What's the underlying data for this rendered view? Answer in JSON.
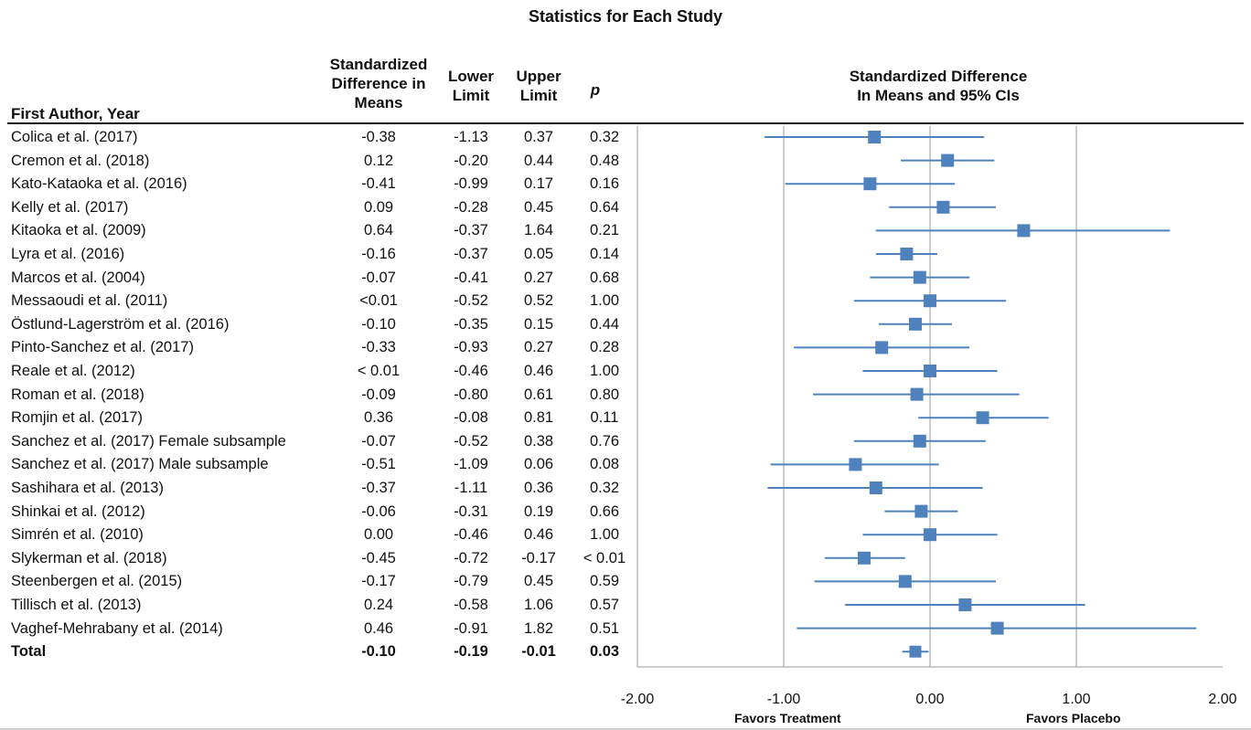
{
  "title": "Statistics for Each Study",
  "headers": {
    "author": "First Author, Year",
    "smd": [
      "Standardized",
      "Difference in",
      "Means"
    ],
    "lower": [
      "Lower",
      "Limit"
    ],
    "upper": [
      "Upper",
      "Limit"
    ],
    "p": "p",
    "plot": [
      "Standardized Difference",
      "In Means and 95% CIs"
    ]
  },
  "footer": {
    "left": "Favors Treatment",
    "right": "Favors Placebo"
  },
  "rows": [
    {
      "author": "Colica et al. (2017)",
      "smd": "-0.38",
      "lower": "-1.13",
      "upper": "0.37",
      "p": "0.32"
    },
    {
      "author": "Cremon et al. (2018)",
      "smd": "0.12",
      "lower": "-0.20",
      "upper": "0.44",
      "p": "0.48"
    },
    {
      "author": "Kato-Kataoka et al. (2016)",
      "smd": "-0.41",
      "lower": "-0.99",
      "upper": "0.17",
      "p": "0.16"
    },
    {
      "author": "Kelly et al. (2017)",
      "smd": "0.09",
      "lower": "-0.28",
      "upper": "0.45",
      "p": "0.64"
    },
    {
      "author": "Kitaoka et al. (2009)",
      "smd": "0.64",
      "lower": "-0.37",
      "upper": "1.64",
      "p": "0.21"
    },
    {
      "author": "Lyra et al. (2016)",
      "smd": "-0.16",
      "lower": "-0.37",
      "upper": "0.05",
      "p": "0.14"
    },
    {
      "author": "Marcos et al. (2004)",
      "smd": "-0.07",
      "lower": "-0.41",
      "upper": "0.27",
      "p": "0.68"
    },
    {
      "author": "Messaoudi et al. (2011)",
      "smd": "<0.01",
      "lower": "-0.52",
      "upper": "0.52",
      "p": "1.00"
    },
    {
      "author": "Östlund-Lagerström et al. (2016)",
      "smd": "-0.10",
      "lower": "-0.35",
      "upper": "0.15",
      "p": "0.44"
    },
    {
      "author": "Pinto-Sanchez et al. (2017)",
      "smd": "-0.33",
      "lower": "-0.93",
      "upper": "0.27",
      "p": "0.28"
    },
    {
      "author": "Reale et al. (2012)",
      "smd": "< 0.01",
      "lower": "-0.46",
      "upper": "0.46",
      "p": "1.00"
    },
    {
      "author": "Roman et al. (2018)",
      "smd": "-0.09",
      "lower": "-0.80",
      "upper": "0.61",
      "p": "0.80"
    },
    {
      "author": "Romjin et al. (2017)",
      "smd": "0.36",
      "lower": "-0.08",
      "upper": "0.81",
      "p": "0.11"
    },
    {
      "author": "Sanchez et al. (2017) Female subsample",
      "smd": "-0.07",
      "lower": "-0.52",
      "upper": "0.38",
      "p": "0.76"
    },
    {
      "author": "Sanchez et al. (2017) Male subsample",
      "smd": "-0.51",
      "lower": "-1.09",
      "upper": "0.06",
      "p": "0.08"
    },
    {
      "author": "Sashihara et al. (2013)",
      "smd": "-0.37",
      "lower": "-1.11",
      "upper": "0.36",
      "p": "0.32"
    },
    {
      "author": "Shinkai et al. (2012)",
      "smd": "-0.06",
      "lower": "-0.31",
      "upper": "0.19",
      "p": "0.66"
    },
    {
      "author": "Simrén et al. (2010)",
      "smd": "0.00",
      "lower": "-0.46",
      "upper": "0.46",
      "p": "1.00"
    },
    {
      "author": "Slykerman et al. (2018)",
      "smd": "-0.45",
      "lower": "-0.72",
      "upper": "-0.17",
      "p": "< 0.01"
    },
    {
      "author": "Steenbergen et al. (2015)",
      "smd": "-0.17",
      "lower": "-0.79",
      "upper": "0.45",
      "p": "0.59"
    },
    {
      "author": "Tillisch et al. (2013)",
      "smd": "0.24",
      "lower": "-0.58",
      "upper": "1.06",
      "p": "0.57"
    },
    {
      "author": "Vaghef-Mehrabany et al. (2014)",
      "smd": "0.46",
      "lower": "-0.91",
      "upper": "1.82",
      "p": "0.51"
    },
    {
      "author": "Total",
      "smd": "-0.10",
      "lower": "-0.19",
      "upper": "-0.01",
      "p": "0.03",
      "total": true
    }
  ],
  "chart_data": {
    "type": "scatter",
    "title": "Standardized Difference In Means and 95% CIs",
    "xlim": [
      -2.0,
      2.0
    ],
    "xticks": [
      "-2.00",
      "-1.00",
      "0.00",
      "1.00",
      "2.00"
    ],
    "xtick_values": [
      -2,
      -1,
      0,
      1,
      2
    ],
    "gridlines_at": [
      -1,
      0,
      1
    ],
    "color": "#4f81bd",
    "points": [
      {
        "label": "Colica et al. (2017)",
        "est": -0.38,
        "lo": -1.13,
        "hi": 0.37
      },
      {
        "label": "Cremon et al. (2018)",
        "est": 0.12,
        "lo": -0.2,
        "hi": 0.44
      },
      {
        "label": "Kato-Kataoka et al. (2016)",
        "est": -0.41,
        "lo": -0.99,
        "hi": 0.17
      },
      {
        "label": "Kelly et al. (2017)",
        "est": 0.09,
        "lo": -0.28,
        "hi": 0.45
      },
      {
        "label": "Kitaoka et al. (2009)",
        "est": 0.64,
        "lo": -0.37,
        "hi": 1.64
      },
      {
        "label": "Lyra et al. (2016)",
        "est": -0.16,
        "lo": -0.37,
        "hi": 0.05
      },
      {
        "label": "Marcos et al. (2004)",
        "est": -0.07,
        "lo": -0.41,
        "hi": 0.27
      },
      {
        "label": "Messaoudi et al. (2011)",
        "est": 0.0,
        "lo": -0.52,
        "hi": 0.52
      },
      {
        "label": "Östlund-Lagerström et al. (2016)",
        "est": -0.1,
        "lo": -0.35,
        "hi": 0.15
      },
      {
        "label": "Pinto-Sanchez et al. (2017)",
        "est": -0.33,
        "lo": -0.93,
        "hi": 0.27
      },
      {
        "label": "Reale et al. (2012)",
        "est": 0.0,
        "lo": -0.46,
        "hi": 0.46
      },
      {
        "label": "Roman et al. (2018)",
        "est": -0.09,
        "lo": -0.8,
        "hi": 0.61
      },
      {
        "label": "Romjin et al. (2017)",
        "est": 0.36,
        "lo": -0.08,
        "hi": 0.81
      },
      {
        "label": "Sanchez et al. (2017) Female subsample",
        "est": -0.07,
        "lo": -0.52,
        "hi": 0.38
      },
      {
        "label": "Sanchez et al. (2017) Male subsample",
        "est": -0.51,
        "lo": -1.09,
        "hi": 0.06
      },
      {
        "label": "Sashihara et al. (2013)",
        "est": -0.37,
        "lo": -1.11,
        "hi": 0.36
      },
      {
        "label": "Shinkai et al. (2012)",
        "est": -0.06,
        "lo": -0.31,
        "hi": 0.19
      },
      {
        "label": "Simrén et al. (2010)",
        "est": 0.0,
        "lo": -0.46,
        "hi": 0.46
      },
      {
        "label": "Slykerman et al. (2018)",
        "est": -0.45,
        "lo": -0.72,
        "hi": -0.17
      },
      {
        "label": "Steenbergen et al. (2015)",
        "est": -0.17,
        "lo": -0.79,
        "hi": 0.45
      },
      {
        "label": "Tillisch et al. (2013)",
        "est": 0.24,
        "lo": -0.58,
        "hi": 1.06
      },
      {
        "label": "Vaghef-Mehrabany et al. (2014)",
        "est": 0.46,
        "lo": -0.91,
        "hi": 1.82
      },
      {
        "label": "Total",
        "est": -0.1,
        "lo": -0.19,
        "hi": -0.01
      }
    ]
  }
}
